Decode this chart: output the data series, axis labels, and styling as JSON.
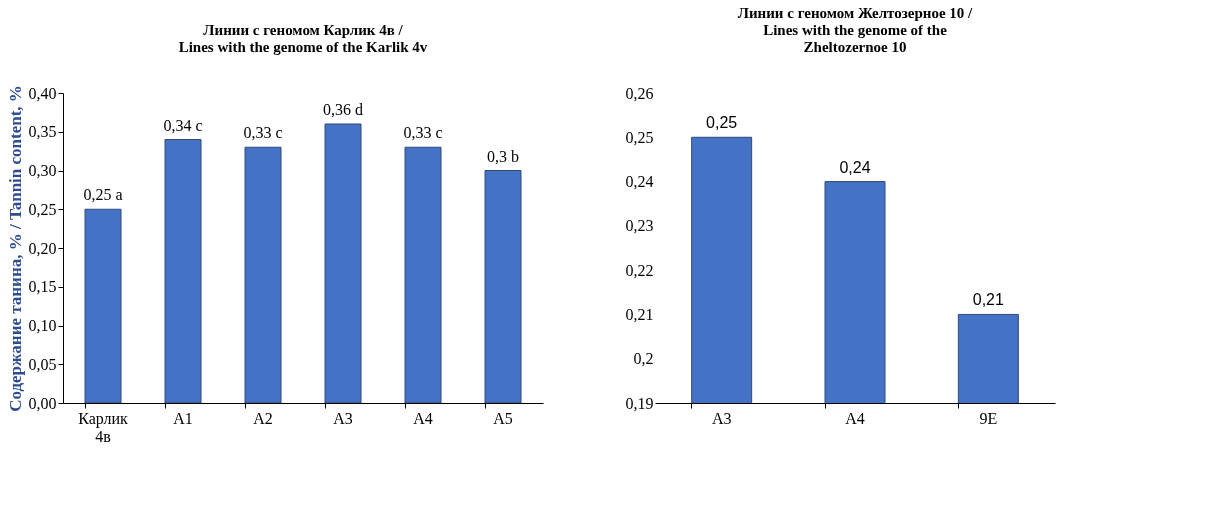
{
  "chart_data": [
    {
      "type": "bar",
      "title": "Линии с геномом Карлик 4в / Lines with the genome of the Karlik 4v",
      "ylabel": "Содержание танина, % / Tannin content, %",
      "categories": [
        "Карлик 4в",
        "A1",
        "A2",
        "A3",
        "A4",
        "A5"
      ],
      "values": [
        0.25,
        0.34,
        0.33,
        0.36,
        0.33,
        0.3
      ],
      "value_labels": [
        "0,25 a",
        "0,34 c",
        "0,33 c",
        "0,36 d",
        "0,33 c",
        "0,3 b"
      ],
      "color": "#4472c4",
      "ylim": [
        0,
        0.4
      ],
      "yticks": [
        {
          "value": 0,
          "label": "0,00"
        },
        {
          "value": 0.05,
          "label": "0,05"
        },
        {
          "value": 0.1,
          "label": "0,10"
        },
        {
          "value": 0.15,
          "label": "0,15"
        },
        {
          "value": 0.2,
          "label": "0,20"
        },
        {
          "value": 0.25,
          "label": "0,25"
        },
        {
          "value": 0.3,
          "label": "0,30"
        },
        {
          "value": 0.35,
          "label": "0,35"
        },
        {
          "value": 0.4,
          "label": "0,40"
        }
      ],
      "grid": false
    },
    {
      "type": "bar",
      "title": "Линии с геномом Желтозерное 10 / Lines with the genome of the Zheltozernoe 10",
      "categories": [
        "A3",
        "A4",
        "9E"
      ],
      "values": [
        0.25,
        0.24,
        0.21
      ],
      "value_labels": [
        "0,25",
        "0,24",
        "0,21"
      ],
      "color": "#4472c4",
      "ylim": [
        0.19,
        0.26
      ],
      "yticks": [
        {
          "value": 0.19,
          "label": "0,19"
        },
        {
          "value": 0.2,
          "label": "0,2"
        },
        {
          "value": 0.21,
          "label": "0,21"
        },
        {
          "value": 0.22,
          "label": "0,22"
        },
        {
          "value": 0.23,
          "label": "0,23"
        },
        {
          "value": 0.24,
          "label": "0,24"
        },
        {
          "value": 0.25,
          "label": "0,25"
        },
        {
          "value": 0.26,
          "label": "0,26"
        }
      ],
      "grid": false
    }
  ]
}
